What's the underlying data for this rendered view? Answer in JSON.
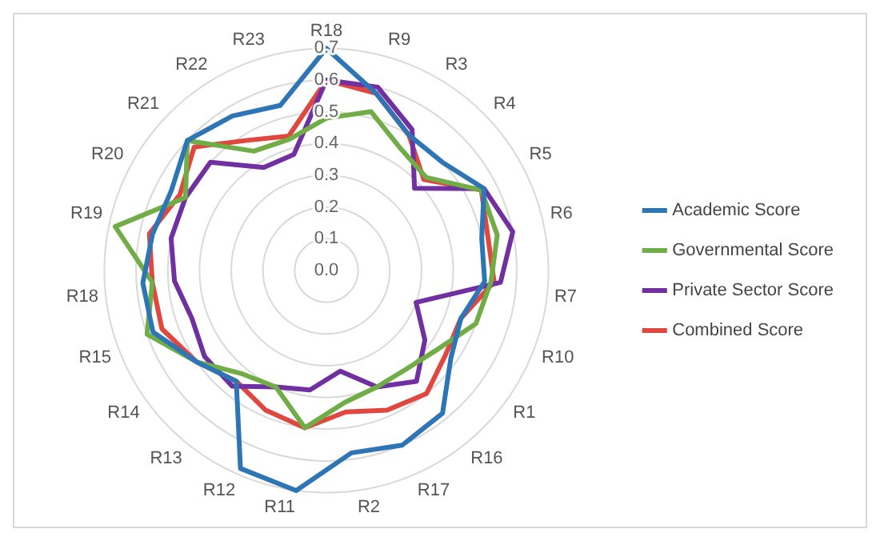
{
  "chart_data": {
    "type": "radar",
    "categories": [
      "R18",
      "R9",
      "R3",
      "R4",
      "R5",
      "R6",
      "R7",
      "R10",
      "R1",
      "R16",
      "R17",
      "R2",
      "R11",
      "R12",
      "R13",
      "R14",
      "R15",
      "R18",
      "R19",
      "R20",
      "R21",
      "R22",
      "R23"
    ],
    "series": [
      {
        "name": "Academic Score",
        "color": "#2e75b6",
        "values": [
          0.7,
          0.58,
          0.5,
          0.5,
          0.56,
          0.5,
          0.5,
          0.45,
          0.48,
          0.58,
          0.6,
          0.58,
          0.7,
          0.68,
          0.45,
          0.5,
          0.58,
          0.58,
          0.56,
          0.55,
          0.6,
          0.57,
          0.54
        ]
      },
      {
        "name": "Governmental Score",
        "color": "#70ad47",
        "values": [
          0.48,
          0.52,
          0.45,
          0.43,
          0.55,
          0.55,
          0.52,
          0.5,
          0.43,
          0.4,
          0.4,
          0.42,
          0.5,
          0.4,
          0.42,
          0.5,
          0.6,
          0.55,
          0.68,
          0.5,
          0.6,
          0.44,
          0.43
        ]
      },
      {
        "name": "Private Sector Score",
        "color": "#7030a0",
        "values": [
          0.6,
          0.6,
          0.52,
          0.38,
          0.56,
          0.6,
          0.55,
          0.3,
          0.38,
          0.45,
          0.4,
          0.32,
          0.38,
          0.4,
          0.47,
          0.47,
          0.45,
          0.48,
          0.5,
          0.5,
          0.5,
          0.38,
          0.38
        ]
      },
      {
        "name": "Combined Score",
        "color": "#e0473f",
        "values": [
          0.6,
          0.58,
          0.5,
          0.42,
          0.55,
          0.52,
          0.53,
          0.45,
          0.46,
          0.5,
          0.48,
          0.45,
          0.5,
          0.48,
          0.45,
          0.5,
          0.55,
          0.55,
          0.57,
          0.52,
          0.57,
          0.48,
          0.44
        ]
      }
    ],
    "ylim": [
      0,
      0.7
    ],
    "yticks": [
      {
        "value": 0,
        "label": "0.0"
      },
      {
        "value": 0.1,
        "label": "0.1"
      },
      {
        "value": 0.2,
        "label": "0.2"
      },
      {
        "value": 0.3,
        "label": "0.3"
      },
      {
        "value": 0.4,
        "label": "0.4"
      },
      {
        "value": 0.5,
        "label": "0.5"
      },
      {
        "value": 0.6,
        "label": "0.6"
      },
      {
        "value": 0.7,
        "label": "0.7"
      }
    ],
    "grid": true,
    "legend": "right",
    "marker": "none",
    "line_style": "solid"
  }
}
